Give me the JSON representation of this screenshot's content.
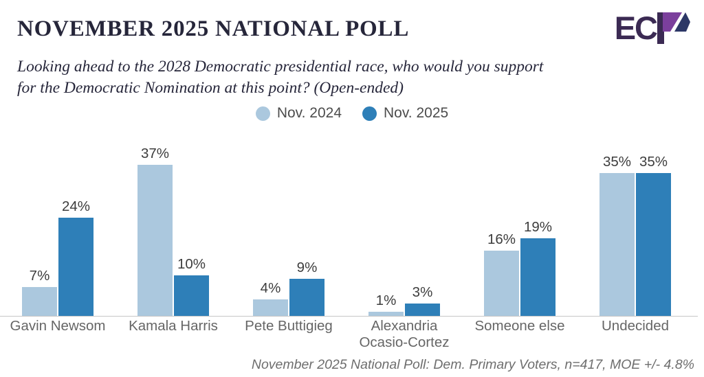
{
  "header": {
    "title": "NOVEMBER 2025 NATIONAL POLL",
    "subtitle_lines": [
      "Looking ahead to the 2028 Democratic presidential race, who would you support",
      "for the Democratic Nomination at this point? (Open-ended)"
    ],
    "logo": {
      "text": "EC",
      "name": "ECP"
    }
  },
  "legend": {
    "items": [
      {
        "label": "Nov. 2024",
        "color": "#abc8de"
      },
      {
        "label": "Nov. 2025",
        "color": "#2e7fb8"
      }
    ]
  },
  "chart_data": {
    "type": "bar",
    "title": "NOVEMBER 2025 NATIONAL POLL",
    "question": "Looking ahead to the 2028 Democratic presidential race, who would you support for the Democratic Nomination at this point? (Open-ended)",
    "categories": [
      "Gavin Newsom",
      "Kamala Harris",
      "Pete Buttigieg",
      "Alexandria Ocasio-Cortez",
      "Someone else",
      "Undecided"
    ],
    "series": [
      {
        "name": "Nov. 2024",
        "color": "#abc8de",
        "values": [
          7,
          37,
          4,
          1,
          16,
          35
        ]
      },
      {
        "name": "Nov. 2025",
        "color": "#2e7fb8",
        "values": [
          24,
          10,
          9,
          3,
          19,
          35
        ]
      }
    ],
    "value_suffix": "%",
    "ylim": [
      0,
      40
    ],
    "grid": false,
    "data_labels": true,
    "legend_position": "top-center",
    "xlabel": "",
    "ylabel": ""
  },
  "footer": {
    "source_note": "November 2025 National Poll: Dem. Primary Voters, n=417, MOE +/- 4.8%"
  },
  "colors": {
    "title": "#26263a",
    "legend_text": "#4c4c4c",
    "value_label": "#3d3d3d",
    "category_label": "#666666",
    "axis_line": "#c6c6c6",
    "footer_text": "#6e6e6e",
    "bar_light": "#abc8de",
    "bar_dark": "#2e7fb8",
    "logo_dark": "#3b2a53",
    "logo_purple": "#7b3f9c",
    "logo_navy": "#2c3766"
  }
}
